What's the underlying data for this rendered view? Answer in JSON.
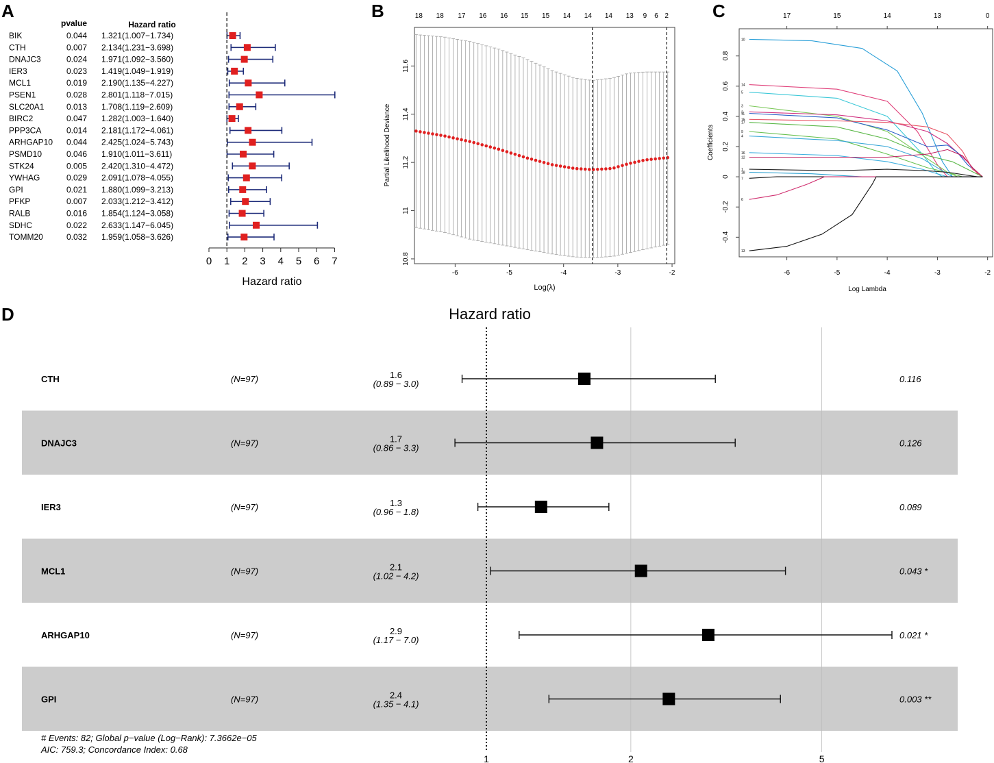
{
  "panels": {
    "a": "A",
    "b": "B",
    "c": "C",
    "d": "D"
  },
  "chart_data": [
    {
      "type": "forest",
      "panel": "A",
      "col_headers": {
        "pvalue": "pvalue",
        "hr": "Hazard ratio"
      },
      "xlabel": "Hazard ratio",
      "xlim": [
        0,
        7
      ],
      "xticks": [
        0,
        1,
        2,
        3,
        4,
        5,
        6,
        7
      ],
      "ref_line": 1,
      "color_marker": "#e02020",
      "color_ci": "#1f2d7a",
      "rows": [
        {
          "gene": "BIK",
          "pvalue": "0.044",
          "hr_text": "1.321(1.007−1.734)",
          "hr": 1.321,
          "lo": 1.007,
          "hi": 1.734
        },
        {
          "gene": "CTH",
          "pvalue": "0.007",
          "hr_text": "2.134(1.231−3.698)",
          "hr": 2.134,
          "lo": 1.231,
          "hi": 3.698
        },
        {
          "gene": "DNAJC3",
          "pvalue": "0.024",
          "hr_text": "1.971(1.092−3.560)",
          "hr": 1.971,
          "lo": 1.092,
          "hi": 3.56
        },
        {
          "gene": "IER3",
          "pvalue": "0.023",
          "hr_text": "1.419(1.049−1.919)",
          "hr": 1.419,
          "lo": 1.049,
          "hi": 1.919
        },
        {
          "gene": "MCL1",
          "pvalue": "0.019",
          "hr_text": "2.190(1.135−4.227)",
          "hr": 2.19,
          "lo": 1.135,
          "hi": 4.227
        },
        {
          "gene": "PSEN1",
          "pvalue": "0.028",
          "hr_text": "2.801(1.118−7.015)",
          "hr": 2.801,
          "lo": 1.118,
          "hi": 7.015
        },
        {
          "gene": "SLC20A1",
          "pvalue": "0.013",
          "hr_text": "1.708(1.119−2.609)",
          "hr": 1.708,
          "lo": 1.119,
          "hi": 2.609
        },
        {
          "gene": "BIRC2",
          "pvalue": "0.047",
          "hr_text": "1.282(1.003−1.640)",
          "hr": 1.282,
          "lo": 1.003,
          "hi": 1.64
        },
        {
          "gene": "PPP3CA",
          "pvalue": "0.014",
          "hr_text": "2.181(1.172−4.061)",
          "hr": 2.181,
          "lo": 1.172,
          "hi": 4.061
        },
        {
          "gene": "ARHGAP10",
          "pvalue": "0.044",
          "hr_text": "2.425(1.024−5.743)",
          "hr": 2.425,
          "lo": 1.024,
          "hi": 5.743
        },
        {
          "gene": "PSMD10",
          "pvalue": "0.046",
          "hr_text": "1.910(1.011−3.611)",
          "hr": 1.91,
          "lo": 1.011,
          "hi": 3.611
        },
        {
          "gene": "STK24",
          "pvalue": "0.005",
          "hr_text": "2.420(1.310−4.472)",
          "hr": 2.42,
          "lo": 1.31,
          "hi": 4.472
        },
        {
          "gene": "YWHAG",
          "pvalue": "0.029",
          "hr_text": "2.091(1.078−4.055)",
          "hr": 2.091,
          "lo": 1.078,
          "hi": 4.055
        },
        {
          "gene": "GPI",
          "pvalue": "0.021",
          "hr_text": "1.880(1.099−3.213)",
          "hr": 1.88,
          "lo": 1.099,
          "hi": 3.213
        },
        {
          "gene": "PFKP",
          "pvalue": "0.007",
          "hr_text": "2.033(1.212−3.412)",
          "hr": 2.033,
          "lo": 1.212,
          "hi": 3.412
        },
        {
          "gene": "RALB",
          "pvalue": "0.016",
          "hr_text": "1.854(1.124−3.058)",
          "hr": 1.854,
          "lo": 1.124,
          "hi": 3.058
        },
        {
          "gene": "SDHC",
          "pvalue": "0.022",
          "hr_text": "2.633(1.147−6.045)",
          "hr": 2.633,
          "lo": 1.147,
          "hi": 6.045
        },
        {
          "gene": "TOMM20",
          "pvalue": "0.032",
          "hr_text": "1.959(1.058−3.626)",
          "hr": 1.959,
          "lo": 1.058,
          "hi": 3.626
        }
      ]
    },
    {
      "type": "line",
      "panel": "B",
      "xlabel": "Log(λ)",
      "ylabel": "Partial Likelihood Deviance",
      "xlim": [
        -6.75,
        -1.95
      ],
      "ylim": [
        10.78,
        11.76
      ],
      "xticks": [
        -6,
        -5,
        -4,
        -3,
        -2
      ],
      "yticks": [
        10.8,
        11.0,
        11.2,
        11.4,
        11.6
      ],
      "top_tick_labels": [
        "18",
        "18",
        "17",
        "16",
        "16",
        "15",
        "15",
        "14",
        "14",
        "14",
        "13",
        "9",
        "6",
        "2"
      ],
      "top_tick_x": [
        -6.67,
        -6.28,
        -5.88,
        -5.49,
        -5.1,
        -4.72,
        -4.33,
        -3.94,
        -3.55,
        -3.17,
        -2.78,
        -2.5,
        -2.29,
        -2.1
      ],
      "vlines": [
        -3.47,
        -2.1
      ],
      "curve_x_range": [
        -6.72,
        -2.08
      ],
      "n_points": 62,
      "curve": [
        [
          -6.72,
          11.33
        ],
        [
          -6.2,
          11.31
        ],
        [
          -5.7,
          11.285
        ],
        [
          -5.2,
          11.255
        ],
        [
          -4.7,
          11.22
        ],
        [
          -4.2,
          11.19
        ],
        [
          -3.8,
          11.175
        ],
        [
          -3.47,
          11.17
        ],
        [
          -3.1,
          11.175
        ],
        [
          -2.8,
          11.195
        ],
        [
          -2.5,
          11.21
        ],
        [
          -2.08,
          11.22
        ]
      ],
      "upper": [
        [
          -6.72,
          11.73
        ],
        [
          -6.2,
          11.72
        ],
        [
          -5.7,
          11.7
        ],
        [
          -5.2,
          11.67
        ],
        [
          -4.7,
          11.63
        ],
        [
          -4.2,
          11.58
        ],
        [
          -3.8,
          11.55
        ],
        [
          -3.47,
          11.54
        ],
        [
          -3.1,
          11.55
        ],
        [
          -2.8,
          11.57
        ],
        [
          -2.5,
          11.575
        ],
        [
          -2.08,
          11.575
        ]
      ],
      "lower": [
        [
          -6.72,
          10.93
        ],
        [
          -6.2,
          10.91
        ],
        [
          -5.7,
          10.88
        ],
        [
          -5.2,
          10.86
        ],
        [
          -4.7,
          10.84
        ],
        [
          -4.2,
          10.82
        ],
        [
          -3.8,
          10.808
        ],
        [
          -3.47,
          10.805
        ],
        [
          -3.1,
          10.81
        ],
        [
          -2.8,
          10.825
        ],
        [
          -2.5,
          10.84
        ],
        [
          -2.08,
          10.86
        ]
      ],
      "color_points": "#e02020",
      "color_bars": "#aaaaaa"
    },
    {
      "type": "line",
      "panel": "C",
      "xlabel": "Log Lambda",
      "ylabel": "Coefficients",
      "xlim": [
        -6.95,
        -1.9
      ],
      "ylim": [
        -0.53,
        0.98
      ],
      "xticks": [
        -6,
        -5,
        -4,
        -3,
        -2
      ],
      "yticks": [
        -0.4,
        -0.2,
        0.0,
        0.2,
        0.4,
        0.6,
        0.8
      ],
      "top_tick_labels": [
        "17",
        "15",
        "14",
        "13",
        "0"
      ],
      "top_tick_x": [
        -6,
        -5,
        -4,
        -3,
        -2
      ],
      "series": [
        {
          "name": "10",
          "color": "#2a9fd8",
          "points": [
            [
              -6.75,
              0.91
            ],
            [
              -5.5,
              0.9
            ],
            [
              -4.5,
              0.85
            ],
            [
              -3.8,
              0.7
            ],
            [
              -3.3,
              0.42
            ],
            [
              -2.9,
              0.1
            ],
            [
              -2.7,
              0.0
            ],
            [
              -2.1,
              0.0
            ]
          ]
        },
        {
          "name": "14",
          "color": "#e0407a",
          "points": [
            [
              -6.75,
              0.61
            ],
            [
              -5,
              0.58
            ],
            [
              -4,
              0.5
            ],
            [
              -3.4,
              0.3
            ],
            [
              -3.0,
              0.08
            ],
            [
              -2.8,
              0.0
            ],
            [
              -2.1,
              0.0
            ]
          ]
        },
        {
          "name": "5",
          "color": "#3cc8d8",
          "points": [
            [
              -6.75,
              0.56
            ],
            [
              -5,
              0.52
            ],
            [
              -4,
              0.4
            ],
            [
              -3.3,
              0.15
            ],
            [
              -3.0,
              0.02
            ],
            [
              -2.9,
              0.0
            ],
            [
              -2.1,
              0.0
            ]
          ]
        },
        {
          "name": "3",
          "color": "#7cc85a",
          "points": [
            [
              -6.75,
              0.47
            ],
            [
              -5,
              0.4
            ],
            [
              -4,
              0.3
            ],
            [
              -3.2,
              0.12
            ],
            [
              -2.8,
              0.03
            ],
            [
              -2.6,
              0.0
            ],
            [
              -2.1,
              0.0
            ]
          ]
        },
        {
          "name": "2",
          "color": "#d03080",
          "points": [
            [
              -6.75,
              0.43
            ],
            [
              -5,
              0.41
            ],
            [
              -4,
              0.37
            ],
            [
              -3.2,
              0.3
            ],
            [
              -2.8,
              0.22
            ],
            [
              -2.4,
              0.1
            ],
            [
              -2.2,
              0.02
            ],
            [
              -2.1,
              0.0
            ]
          ]
        },
        {
          "name": "11",
          "color": "#2a60c8",
          "points": [
            [
              -6.75,
              0.42
            ],
            [
              -5,
              0.39
            ],
            [
              -4,
              0.31
            ],
            [
              -3.2,
              0.2
            ],
            [
              -2.8,
              0.21
            ],
            [
              -2.6,
              0.16
            ],
            [
              -2.4,
              0.08
            ],
            [
              -2.1,
              0.0
            ]
          ]
        },
        {
          "name": "15",
          "color": "#e85868",
          "points": [
            [
              -6.75,
              0.38
            ],
            [
              -5,
              0.37
            ],
            [
              -4,
              0.36
            ],
            [
              -3.2,
              0.33
            ],
            [
              -2.8,
              0.28
            ],
            [
              -2.5,
              0.17
            ],
            [
              -2.3,
              0.05
            ],
            [
              -2.1,
              0.0
            ]
          ]
        },
        {
          "name": "17",
          "color": "#5bb848",
          "points": [
            [
              -6.75,
              0.36
            ],
            [
              -5,
              0.33
            ],
            [
              -4,
              0.25
            ],
            [
              -3.2,
              0.14
            ],
            [
              -2.7,
              0.1
            ],
            [
              -2.4,
              0.05
            ],
            [
              -2.1,
              0.0
            ]
          ]
        },
        {
          "name": "9",
          "color": "#68c050",
          "points": [
            [
              -6.75,
              0.3
            ],
            [
              -5,
              0.25
            ],
            [
              -4,
              0.15
            ],
            [
              -3.2,
              0.06
            ],
            [
              -2.7,
              0.02
            ],
            [
              -2.5,
              0.0
            ],
            [
              -2.1,
              0.0
            ]
          ]
        },
        {
          "name": "4",
          "color": "#3aa8d8",
          "points": [
            [
              -6.75,
              0.27
            ],
            [
              -5,
              0.24
            ],
            [
              -4,
              0.2
            ],
            [
              -3.3,
              0.12
            ],
            [
              -2.9,
              0.04
            ],
            [
              -2.7,
              0.0
            ],
            [
              -2.1,
              0.0
            ]
          ]
        },
        {
          "name": "16",
          "color": "#40b0e0",
          "points": [
            [
              -6.75,
              0.16
            ],
            [
              -5,
              0.14
            ],
            [
              -4,
              0.1
            ],
            [
              -3.3,
              0.05
            ],
            [
              -2.9,
              0.01
            ],
            [
              -2.8,
              0.0
            ],
            [
              -2.1,
              0.0
            ]
          ]
        },
        {
          "name": "12",
          "color": "#c02060",
          "points": [
            [
              -6.75,
              0.13
            ],
            [
              -5,
              0.13
            ],
            [
              -4,
              0.13
            ],
            [
              -3.2,
              0.15
            ],
            [
              -2.8,
              0.18
            ],
            [
              -2.5,
              0.14
            ],
            [
              -2.3,
              0.06
            ],
            [
              -2.1,
              0.0
            ]
          ]
        },
        {
          "name": "1",
          "color": "#222222",
          "points": [
            [
              -6.75,
              0.05
            ],
            [
              -5,
              0.04
            ],
            [
              -4,
              0.05
            ],
            [
              -3.2,
              0.04
            ],
            [
              -2.8,
              0.03
            ],
            [
              -2.4,
              0.01
            ],
            [
              -2.2,
              0.0
            ],
            [
              -2.1,
              0.0
            ]
          ]
        },
        {
          "name": "18",
          "color": "#2aa0d0",
          "points": [
            [
              -6.75,
              0.03
            ],
            [
              -5.5,
              0.02
            ],
            [
              -5,
              0.01
            ],
            [
              -4.5,
              0.0
            ],
            [
              -2.1,
              0.0
            ]
          ]
        },
        {
          "name": "7",
          "color": "#111111",
          "points": [
            [
              -6.75,
              -0.01
            ],
            [
              -6.2,
              0.0
            ],
            [
              -5.6,
              0.0
            ],
            [
              -2.1,
              0.0
            ]
          ]
        },
        {
          "name": "6",
          "color": "#d03070",
          "points": [
            [
              -6.75,
              -0.15
            ],
            [
              -6.2,
              -0.12
            ],
            [
              -5.6,
              -0.05
            ],
            [
              -5.25,
              0.0
            ],
            [
              -2.1,
              0.0
            ]
          ]
        },
        {
          "name": "13",
          "color": "#111111",
          "points": [
            [
              -6.75,
              -0.49
            ],
            [
              -6.0,
              -0.46
            ],
            [
              -5.3,
              -0.38
            ],
            [
              -4.7,
              -0.25
            ],
            [
              -4.3,
              -0.05
            ],
            [
              -4.22,
              0.0
            ],
            [
              -2.1,
              0.0
            ]
          ]
        }
      ]
    },
    {
      "type": "forest",
      "panel": "D",
      "title": "Hazard ratio",
      "xscale": "log",
      "xlim": [
        0.59,
        7.6
      ],
      "xticks": [
        1,
        2,
        5
      ],
      "ref_line": 1,
      "rows": [
        {
          "gene": "CTH",
          "n": "(N=97)",
          "hr_text": "1.6",
          "ci_text": "(0.89 − 3.0)",
          "p_text": "0.116",
          "hr": 1.6,
          "lo": 0.89,
          "hi": 3.0,
          "shaded": false
        },
        {
          "gene": "DNAJC3",
          "n": "(N=97)",
          "hr_text": "1.7",
          "ci_text": "(0.86 − 3.3)",
          "p_text": "0.126",
          "hr": 1.7,
          "lo": 0.86,
          "hi": 3.3,
          "shaded": true
        },
        {
          "gene": "IER3",
          "n": "(N=97)",
          "hr_text": "1.3",
          "ci_text": "(0.96 − 1.8)",
          "p_text": "0.089",
          "hr": 1.3,
          "lo": 0.96,
          "hi": 1.8,
          "shaded": false
        },
        {
          "gene": "MCL1",
          "n": "(N=97)",
          "hr_text": "2.1",
          "ci_text": "(1.02 − 4.2)",
          "p_text": "0.043 *",
          "hr": 2.1,
          "lo": 1.02,
          "hi": 4.2,
          "shaded": true
        },
        {
          "gene": "ARHGAP10",
          "n": "(N=97)",
          "hr_text": "2.9",
          "ci_text": "(1.17 − 7.0)",
          "p_text": "0.021 *",
          "hr": 2.9,
          "lo": 1.17,
          "hi": 7.0,
          "shaded": false
        },
        {
          "gene": "GPI",
          "n": "(N=97)",
          "hr_text": "2.4",
          "ci_text": "(1.35 − 4.1)",
          "p_text": "0.003 **",
          "hr": 2.4,
          "lo": 1.35,
          "hi": 4.1,
          "shaded": true
        }
      ],
      "footnote_1": "# Events: 82; Global p−value (Log−Rank): 7.3662e−05",
      "footnote_2": "AIC: 759.3; Concordance Index: 0.68",
      "shade_color": "#cccccc"
    }
  ]
}
